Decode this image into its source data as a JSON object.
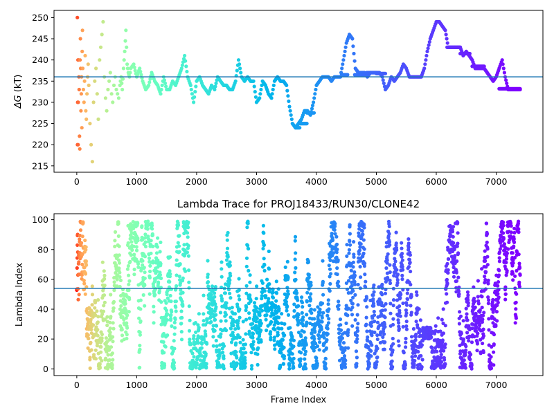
{
  "chart_data": [
    {
      "type": "scatter",
      "title": "",
      "xlabel": "",
      "ylabel": "ΔG (kT)",
      "ylabel_symbol": "ΔG",
      "ylabel_unit": " (kT)",
      "xlim": [
        -380,
        7780
      ],
      "ylim": [
        213.5,
        251.7
      ],
      "xticks": [
        0,
        1000,
        2000,
        3000,
        4000,
        5000,
        6000,
        7000
      ],
      "yticks": [
        215,
        220,
        225,
        230,
        235,
        240,
        245,
        250
      ],
      "hline": 236,
      "hline_color": "#1f77b4",
      "colormap": "rainbow (red at frame 0 to violet at late frames)",
      "points_x": [
        10,
        12,
        15,
        20,
        22,
        25,
        30,
        35,
        40,
        45,
        50,
        55,
        60,
        65,
        70,
        75,
        80,
        85,
        90,
        95,
        100,
        110,
        120,
        130,
        140,
        150,
        160,
        170,
        180,
        190,
        200,
        220,
        240,
        260,
        280,
        300,
        320,
        340,
        360,
        380,
        400,
        420,
        440,
        460,
        480,
        500,
        520,
        540,
        560,
        580,
        600,
        620,
        640,
        660,
        680,
        700,
        720,
        740,
        760,
        780,
        800,
        820,
        840,
        860,
        880,
        900,
        950,
        1000,
        1050,
        1100,
        1150,
        1200,
        1250,
        1300,
        1350,
        1400,
        1450,
        1500,
        1550,
        1600,
        1650,
        1700,
        1750,
        1800,
        1850,
        1900,
        1950,
        2000,
        2050,
        2100,
        2150,
        2200,
        2250,
        2300,
        2350,
        2400,
        2450,
        2500,
        2550,
        2600,
        2650,
        2700,
        2750,
        2800,
        2850,
        2900,
        2950,
        3000,
        3050,
        3100,
        3150,
        3200,
        3250,
        3300,
        3350,
        3400,
        3450,
        3500,
        3550,
        3600,
        3650,
        3700,
        3750,
        3800,
        3850,
        3900,
        3950,
        4000,
        4050,
        4100,
        4150,
        4200,
        4250,
        4300,
        4350,
        4400,
        4450,
        4500,
        4550,
        4600,
        4650,
        4700,
        4750,
        4800,
        4850,
        4900,
        4950,
        5000,
        5050,
        5100,
        5150,
        5200,
        5250,
        5300,
        5350,
        5400,
        5450,
        5500,
        5550,
        5600,
        5650,
        5700,
        5750,
        5800,
        5850,
        5900,
        5950,
        6000,
        6050,
        6100,
        6150,
        6200,
        6250,
        6300,
        6350,
        6400,
        6450,
        6500,
        6550,
        6600,
        6650,
        6700,
        6750,
        6800,
        6850,
        6900,
        6950,
        7000,
        7050,
        7100,
        7150,
        7200,
        7250,
        7300,
        7350,
        7400
      ],
      "points_y": [
        250,
        220,
        230,
        240,
        220,
        230,
        240,
        236,
        233,
        222,
        219,
        240,
        245,
        238,
        228,
        232,
        236,
        224,
        242,
        247,
        238,
        233,
        230,
        235,
        241,
        228,
        226,
        232,
        236,
        239,
        234,
        225,
        220,
        216,
        230,
        235,
        238,
        232,
        226,
        240,
        243,
        246,
        249,
        236,
        231,
        228,
        233,
        235,
        237,
        232,
        230,
        234,
        236,
        233,
        232,
        231,
        234,
        236,
        233,
        238,
        242,
        247,
        239,
        237,
        236,
        238,
        239,
        236,
        238,
        235,
        233,
        234,
        237,
        235,
        234,
        232,
        236,
        233,
        233,
        235,
        234,
        236,
        238,
        241,
        236,
        234,
        230,
        235,
        236,
        234,
        233,
        232,
        234,
        233,
        236,
        235,
        234,
        234,
        233,
        233,
        235,
        240,
        236,
        235,
        236,
        235,
        235,
        230,
        231,
        235,
        234,
        232,
        231,
        235,
        236,
        235,
        235,
        234,
        229,
        225,
        224,
        225,
        226,
        228,
        228,
        227,
        230,
        234,
        235,
        236,
        236,
        236,
        235,
        236,
        236,
        236,
        240,
        244,
        246,
        245,
        238,
        237,
        237,
        237,
        236,
        237,
        237,
        237,
        237,
        236,
        233,
        234,
        236,
        235,
        236,
        237,
        239,
        238,
        236,
        236,
        236,
        236,
        236,
        238,
        242,
        245,
        247,
        249,
        249,
        248,
        247,
        243,
        243,
        243,
        243,
        243,
        241,
        242,
        241,
        240,
        238,
        238,
        238,
        238,
        237,
        236,
        235,
        236,
        238,
        240,
        236,
        233,
        233,
        233,
        233,
        233,
        233,
        233
      ],
      "segments": [
        {
          "x0": 3650,
          "x1": 3720,
          "y": 224
        },
        {
          "x0": 3720,
          "x1": 3840,
          "y": 225
        },
        {
          "x0": 3840,
          "x1": 3960,
          "y": 227.5
        },
        {
          "x0": 4420,
          "x1": 4520,
          "y": 236.5
        },
        {
          "x0": 4640,
          "x1": 4840,
          "y": 236.5
        },
        {
          "x0": 4840,
          "x1": 5000,
          "y": 237
        },
        {
          "x0": 5000,
          "x1": 5150,
          "y": 236.8
        },
        {
          "x0": 6180,
          "x1": 6400,
          "y": 243
        },
        {
          "x0": 6400,
          "x1": 6560,
          "y": 241.5
        },
        {
          "x0": 6600,
          "x1": 6800,
          "y": 238.5
        },
        {
          "x0": 7050,
          "x1": 7400,
          "y": 233.2
        }
      ]
    },
    {
      "type": "scatter",
      "title": "Lambda Trace for PROJ18433/RUN30/CLONE42",
      "xlabel": "Frame Index",
      "ylabel": "Lambda Index",
      "xlim": [
        -380,
        7780
      ],
      "ylim": [
        -4.5,
        104
      ],
      "xticks": [
        0,
        1000,
        2000,
        3000,
        4000,
        5000,
        6000,
        7000
      ],
      "yticks": [
        0,
        20,
        40,
        60,
        80,
        100
      ],
      "hline": 54,
      "hline_color": "#1f77b4",
      "colormap": "rainbow (red at frame 0 to violet at late frames)",
      "x_start": 0,
      "x_end": 7400,
      "y_min": 0,
      "y_max": 99
    }
  ],
  "colors": {
    "hline": "#1f77b4",
    "axes": "#000000",
    "background": "#ffffff"
  }
}
